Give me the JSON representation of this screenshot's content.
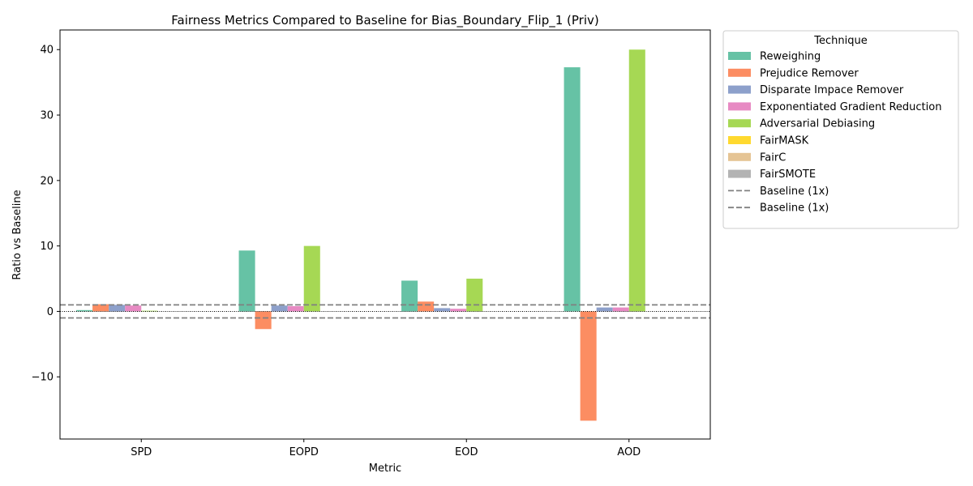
{
  "chart_data": {
    "type": "bar",
    "title": "Fairness Metrics Compared to Baseline for Bias_Boundary_Flip_1 (Priv)",
    "xlabel": "Metric",
    "ylabel": "Ratio vs Baseline",
    "categories": [
      "SPD",
      "EOPD",
      "EOD",
      "AOD"
    ],
    "ylim": [
      -19.5,
      43
    ],
    "yticks": [
      -10,
      0,
      10,
      20,
      30,
      40
    ],
    "ytick_labels": [
      "−10",
      "0",
      "10",
      "20",
      "30",
      "40"
    ],
    "grid": false,
    "legend_title": "Technique",
    "legend_position": "outside-right-top",
    "series": [
      {
        "name": "Reweighing",
        "color": "#66c2a5",
        "values": [
          0.2,
          9.3,
          4.7,
          37.3
        ]
      },
      {
        "name": "Prejudice Remover",
        "color": "#fc8d62",
        "values": [
          1.1,
          -2.7,
          1.5,
          -16.7
        ]
      },
      {
        "name": "Disparate Impace Remover",
        "color": "#8da0cb",
        "values": [
          1.0,
          0.9,
          0.5,
          0.6
        ]
      },
      {
        "name": "Exponentiated Gradient Reduction",
        "color": "#e78ac3",
        "values": [
          0.9,
          0.8,
          0.4,
          0.6
        ]
      },
      {
        "name": "Adversarial Debiasing",
        "color": "#a6d854",
        "values": [
          0.1,
          10.0,
          5.0,
          40.0
        ]
      },
      {
        "name": "FairMASK",
        "color": "#ffd92f",
        "values": [
          0,
          0,
          0,
          0
        ]
      },
      {
        "name": "FairC",
        "color": "#e5c494",
        "values": [
          0,
          0,
          0,
          0
        ]
      },
      {
        "name": "FairSMOTE",
        "color": "#b3b3b3",
        "values": [
          0,
          0,
          0,
          0
        ]
      }
    ],
    "reference_lines": [
      {
        "name": "Baseline (1x)",
        "value": 1,
        "color": "#808080",
        "style": "dashed"
      },
      {
        "name": "Baseline (1x)",
        "value": -1,
        "color": "#808080",
        "style": "dashed"
      },
      {
        "value": 0,
        "color": "#000000",
        "style": "dotted"
      }
    ]
  }
}
